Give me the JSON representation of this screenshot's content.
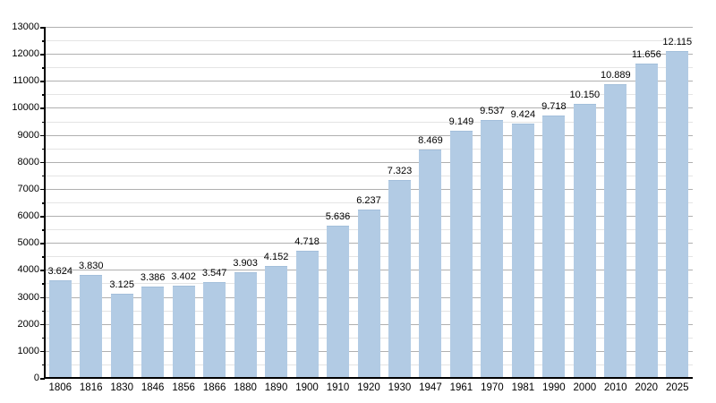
{
  "chart_data": {
    "type": "bar",
    "title": "",
    "xlabel": "",
    "ylabel": "",
    "categories": [
      "1806",
      "1816",
      "1830",
      "1846",
      "1856",
      "1866",
      "1880",
      "1890",
      "1900",
      "1910",
      "1920",
      "1930",
      "1947",
      "1961",
      "1970",
      "1981",
      "1990",
      "2000",
      "2010",
      "2020",
      "2025"
    ],
    "values": [
      3624,
      3830,
      3125,
      3386,
      3402,
      3547,
      3903,
      4152,
      4718,
      5636,
      6237,
      7323,
      8469,
      9149,
      9537,
      9424,
      9718,
      10150,
      10889,
      11656,
      12115
    ],
    "value_labels": [
      "3.624",
      "3.830",
      "3.125",
      "3.386",
      "3.402",
      "3.547",
      "3.903",
      "4.152",
      "4.718",
      "5.636",
      "6.237",
      "7.323",
      "8.469",
      "9.149",
      "9.537",
      "9.424",
      "9.718",
      "10.150",
      "10.889",
      "11.656",
      "12.115"
    ],
    "y_tick_labels": [
      "0",
      "1000",
      "2000",
      "3000",
      "4000",
      "5000",
      "6000",
      "7000",
      "8000",
      "9000",
      "10000",
      "11000",
      "12000",
      "13000"
    ],
    "ylim": [
      0,
      13000
    ],
    "y_major_step": 1000,
    "y_minor_step": 500,
    "grid": true,
    "legend": "none",
    "colors": {
      "bar_fill": "#b2cbe4",
      "bar_edge": "#a3bfdb",
      "major_grid": "#b0b0b0",
      "minor_grid": "#e4e4e4",
      "axis": "#000000",
      "text": "#000000"
    }
  }
}
